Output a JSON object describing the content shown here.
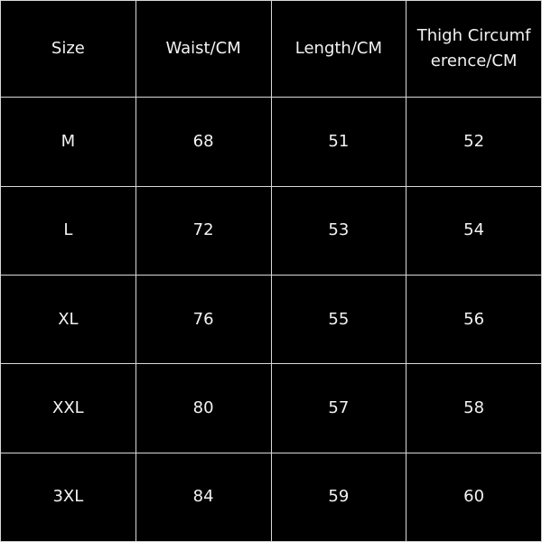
{
  "table": {
    "header": [
      "Size",
      "Waist/CM",
      "Length/CM",
      "Thigh Circumference/CM"
    ],
    "rows": [
      [
        "M",
        "68",
        "51",
        "52"
      ],
      [
        "L",
        "72",
        "53",
        "54"
      ],
      [
        "XL",
        "76",
        "55",
        "56"
      ],
      [
        "XXL",
        "80",
        "57",
        "58"
      ],
      [
        "3XL",
        "84",
        "59",
        "60"
      ]
    ]
  }
}
